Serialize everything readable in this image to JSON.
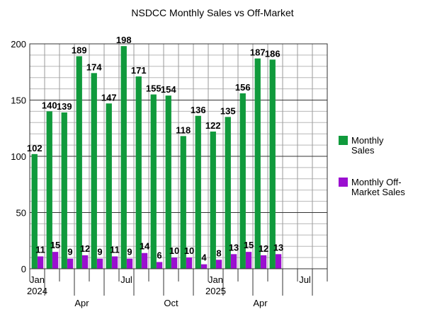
{
  "chart_data": {
    "type": "bar",
    "title": "NSDCC Monthly Sales vs Off-Market",
    "xlabel": "",
    "ylabel": "",
    "ylim": [
      0,
      200
    ],
    "yticks": [
      0,
      50,
      100,
      150,
      200
    ],
    "grid": true,
    "legend_position": "right",
    "categories": [
      "Jan 2024",
      "Feb 2024",
      "Mar 2024",
      "Apr 2024",
      "May 2024",
      "Jun 2024",
      "Jul 2024",
      "Aug 2024",
      "Sep 2024",
      "Oct 2024",
      "Nov 2024",
      "Dec 2024",
      "Jan 2025",
      "Feb 2025",
      "Mar 2025",
      "Apr 2025",
      "May 2025",
      "Jun 2025",
      "Jul 2025",
      "Aug 2025"
    ],
    "x_tick_labels": [
      {
        "index": 0,
        "lines": [
          "Jan",
          "2024"
        ]
      },
      {
        "index": 3,
        "lines": [
          "Apr"
        ]
      },
      {
        "index": 6,
        "lines": [
          "Jul"
        ]
      },
      {
        "index": 9,
        "lines": [
          "Oct"
        ]
      },
      {
        "index": 12,
        "lines": [
          "Jan",
          "2025"
        ]
      },
      {
        "index": 15,
        "lines": [
          "Apr"
        ]
      },
      {
        "index": 18,
        "lines": [
          "Jul"
        ]
      }
    ],
    "series": [
      {
        "name": "Monthly Sales",
        "legend_lines": [
          "Monthly",
          "Sales"
        ],
        "color": "#109a3c",
        "values": [
          102,
          140,
          139,
          189,
          174,
          147,
          198,
          171,
          155,
          154,
          118,
          136,
          122,
          135,
          156,
          187,
          186,
          null,
          null,
          null
        ]
      },
      {
        "name": "Monthly Off-Market Sales",
        "legend_lines": [
          "Monthly Off-",
          "Market Sales"
        ],
        "color": "#9b0fd0",
        "values": [
          11,
          15,
          9,
          12,
          9,
          11,
          9,
          14,
          6,
          10,
          10,
          4,
          8,
          13,
          15,
          12,
          13,
          null,
          null,
          null
        ]
      }
    ]
  }
}
